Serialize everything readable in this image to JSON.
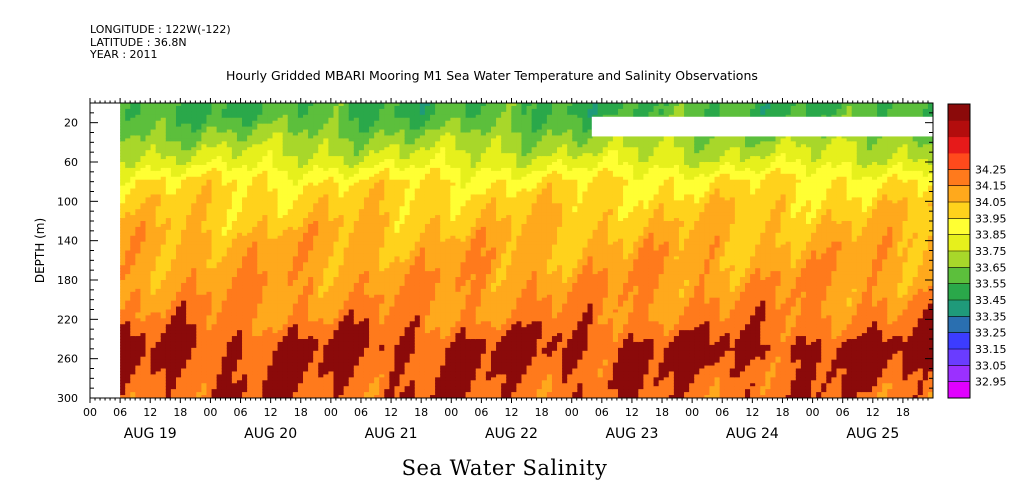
{
  "meta": {
    "longitude": "LONGITUDE : 122W(-122)",
    "latitude": "LATITUDE : 36.8N",
    "year": "YEAR : 2011"
  },
  "chart_data": {
    "type": "heatmap",
    "title": "Hourly Gridded MBARI Mooring M1 Sea Water Temperature and Salinity Observations",
    "bottom_title": "Sea Water Salinity",
    "ylabel": "DEPTH (m)",
    "y_range": [
      300,
      0
    ],
    "y_ticks": [
      20,
      60,
      100,
      140,
      180,
      220,
      260,
      300
    ],
    "x_range_hours": [
      0,
      168
    ],
    "x_hour_ticks": [
      "00",
      "06",
      "12",
      "18",
      "00",
      "06",
      "12",
      "18",
      "00",
      "06",
      "12",
      "18",
      "00",
      "06",
      "12",
      "18",
      "00",
      "06",
      "12",
      "18",
      "00",
      "06",
      "12",
      "18",
      "00",
      "06",
      "12",
      "18"
    ],
    "day_labels": [
      "AUG 19",
      "AUG 20",
      "AUG 21",
      "AUG 22",
      "AUG 23",
      "AUG 24",
      "AUG 25"
    ],
    "data_start_hour": 6,
    "colorbar": {
      "levels": [
        32.95,
        33.05,
        33.15,
        33.25,
        33.35,
        33.45,
        33.55,
        33.65,
        33.75,
        33.85,
        33.95,
        34.05,
        34.15,
        34.25
      ],
      "labels": [
        "32.95",
        "33.05",
        "33.15",
        "33.25",
        "33.35",
        "33.45",
        "33.55",
        "33.65",
        "33.75",
        "33.85",
        "33.95",
        "34.05",
        "34.15",
        "34.25"
      ],
      "colors": [
        "#e100ff",
        "#9b30ff",
        "#6a3cff",
        "#3c3cff",
        "#2a6fb0",
        "#1f9a7a",
        "#2aa84a",
        "#5cbf3c",
        "#a8d72a",
        "#e6f01c",
        "#ffff33",
        "#ffd21c",
        "#ffa91c",
        "#ff7a1c",
        "#ff4a1c",
        "#e61a1a",
        "#b30d0d",
        "#8b0a0a"
      ]
    },
    "depth_profile": [
      {
        "depth": 10,
        "salinity": 33.55
      },
      {
        "depth": 20,
        "salinity": 33.6
      },
      {
        "depth": 40,
        "salinity": 33.7
      },
      {
        "depth": 60,
        "salinity": 33.8
      },
      {
        "depth": 80,
        "salinity": 33.95
      },
      {
        "depth": 100,
        "salinity": 34.0
      },
      {
        "depth": 140,
        "salinity": 34.08
      },
      {
        "depth": 180,
        "salinity": 34.12
      },
      {
        "depth": 220,
        "salinity": 34.18
      },
      {
        "depth": 250,
        "salinity": 34.28
      },
      {
        "depth": 270,
        "salinity": 34.25
      },
      {
        "depth": 300,
        "salinity": 34.22
      }
    ]
  }
}
